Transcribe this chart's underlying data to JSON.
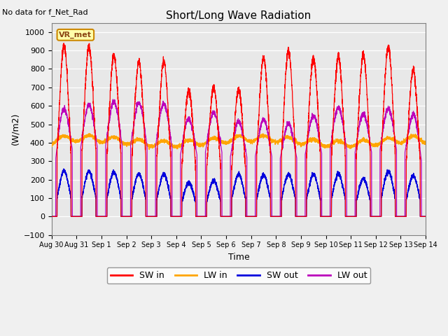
{
  "title": "Short/Long Wave Radiation",
  "xlabel": "Time",
  "ylabel": "(W/m2)",
  "top_left_text": "No data for f_Net_Rad",
  "legend_label_text": "VR_met",
  "ylim": [
    -100,
    1050
  ],
  "xlim_days": [
    0,
    15
  ],
  "date_labels": [
    "Aug 30",
    "Aug 31",
    "Sep 1",
    "Sep 2",
    "Sep 3",
    "Sep 4",
    "Sep 5",
    "Sep 6",
    "Sep 7",
    "Sep 8",
    "Sep 9",
    "Sep 10",
    "Sep 11",
    "Sep 12",
    "Sep 13",
    "Sep 14"
  ],
  "date_ticks": [
    0,
    1,
    2,
    3,
    4,
    5,
    6,
    7,
    8,
    9,
    10,
    11,
    12,
    13,
    14,
    15
  ],
  "sw_in_color": "#ff0000",
  "lw_in_color": "#ffa500",
  "sw_out_color": "#0000dd",
  "lw_out_color": "#bb00bb",
  "plot_bg_color": "#e8e8e8",
  "fig_bg_color": "#f0f0f0",
  "sw_in_peaks": [
    925,
    920,
    875,
    835,
    840,
    685,
    700,
    685,
    860,
    895,
    860,
    865,
    875,
    920,
    795
  ],
  "sw_out_peaks": [
    248,
    245,
    240,
    232,
    230,
    185,
    195,
    230,
    225,
    228,
    228,
    232,
    205,
    245,
    220
  ],
  "lw_in_base": 370,
  "lw_out_night": 0,
  "lw_out_day_peaks": [
    580,
    600,
    615,
    610,
    605,
    525,
    560,
    510,
    520,
    500,
    540,
    585,
    550,
    580,
    550
  ],
  "day_start": 0.22,
  "day_end": 0.78,
  "figsize": [
    6.4,
    4.8
  ],
  "dpi": 100
}
